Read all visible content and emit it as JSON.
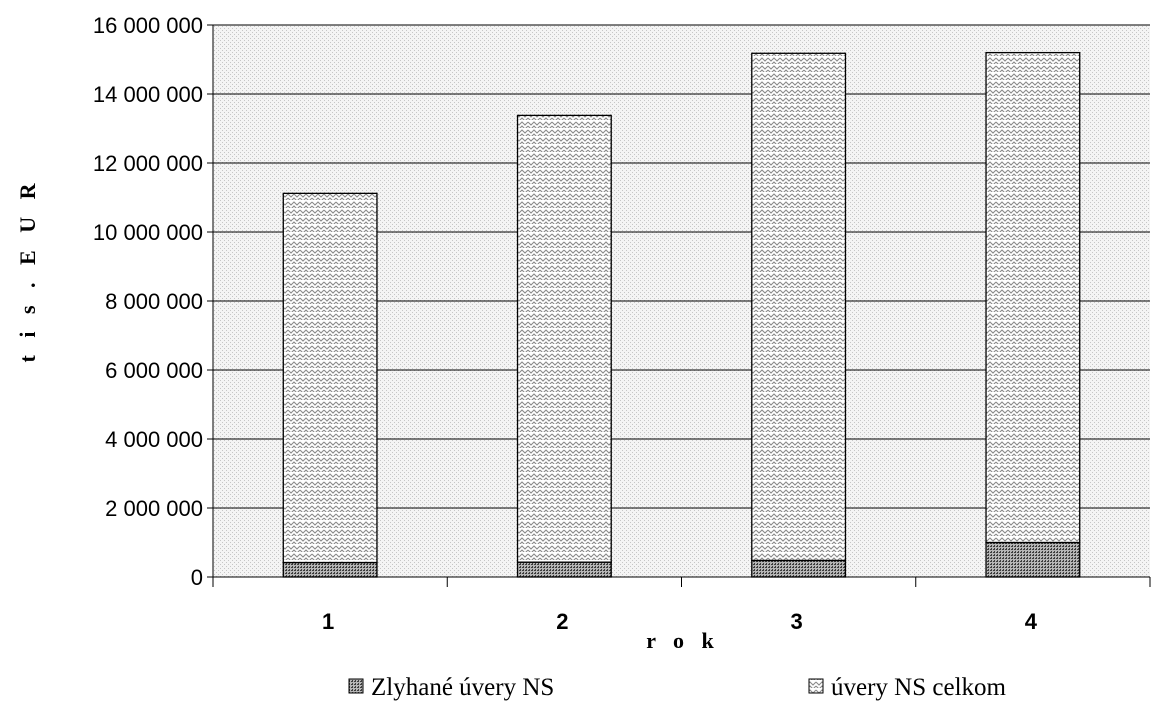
{
  "chart_data": {
    "type": "bar",
    "stacked": true,
    "categories": [
      "1",
      "2",
      "3",
      "4"
    ],
    "series": [
      {
        "name": "Zlyhané úvery NS",
        "values": [
          420000,
          430000,
          480000,
          1000000
        ],
        "color": "#7a7a7a",
        "pattern": "dense-dots"
      },
      {
        "name": "úvery NS celkom",
        "values": [
          10700000,
          12950000,
          14700000,
          14200000
        ],
        "color": "#9a9a9a",
        "pattern": "zigzag"
      }
    ],
    "xlabel": "r o k",
    "ylabel": "t i s .   E U R",
    "ylim": [
      0,
      16000000
    ],
    "yticks": [
      0,
      2000000,
      4000000,
      6000000,
      8000000,
      10000000,
      12000000,
      14000000,
      16000000
    ],
    "ytick_labels": [
      "0",
      "2 000 000",
      "4 000 000",
      "6 000 000",
      "8 000 000",
      "10 000 000",
      "12 000 000",
      "14 000 000",
      "16 000 000"
    ],
    "grid": true,
    "legend_position": "bottom"
  }
}
